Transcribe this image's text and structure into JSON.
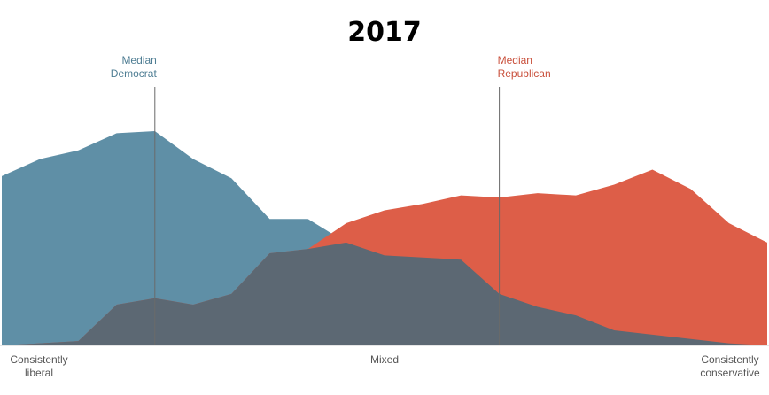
{
  "chart_data": {
    "type": "area",
    "title": "2017",
    "x": [
      0,
      1,
      2,
      3,
      4,
      5,
      6,
      7,
      8,
      9,
      10,
      11,
      12,
      13,
      14,
      15,
      16,
      17,
      18,
      19,
      20
    ],
    "xlim": [
      0,
      20
    ],
    "ylim": [
      0,
      100
    ],
    "series": [
      {
        "key": "dem",
        "color": "#5f8fa6",
        "values": [
          79,
          87,
          91,
          99,
          100,
          87,
          78,
          59,
          59,
          48,
          42,
          41,
          40,
          24,
          18,
          14,
          7,
          5,
          3,
          1,
          0
        ]
      },
      {
        "key": "rep",
        "color": "#dd5e48",
        "values": [
          0,
          1,
          2,
          19,
          22,
          19,
          24,
          43,
          45,
          57,
          63,
          66,
          70,
          69,
          71,
          70,
          75,
          82,
          73,
          57,
          48
        ]
      }
    ],
    "overlap_color": "#5c6873",
    "medians": [
      {
        "key": "dem",
        "label_line1": "Median",
        "label_line2": "Democrat",
        "x": 4.0,
        "color": "#4e7d93"
      },
      {
        "key": "rep",
        "label_line1": "Median",
        "label_line2": "Republican",
        "x": 13.0,
        "color": "#c9503c"
      }
    ],
    "axis_labels": [
      {
        "key": "liberal",
        "line1": "Consistently",
        "line2": "liberal",
        "x": 1
      },
      {
        "key": "mixed",
        "line1": "Mixed",
        "line2": "",
        "x": 10
      },
      {
        "key": "conservative",
        "line1": "Consistently",
        "line2": "conservative",
        "x": 19
      }
    ]
  }
}
